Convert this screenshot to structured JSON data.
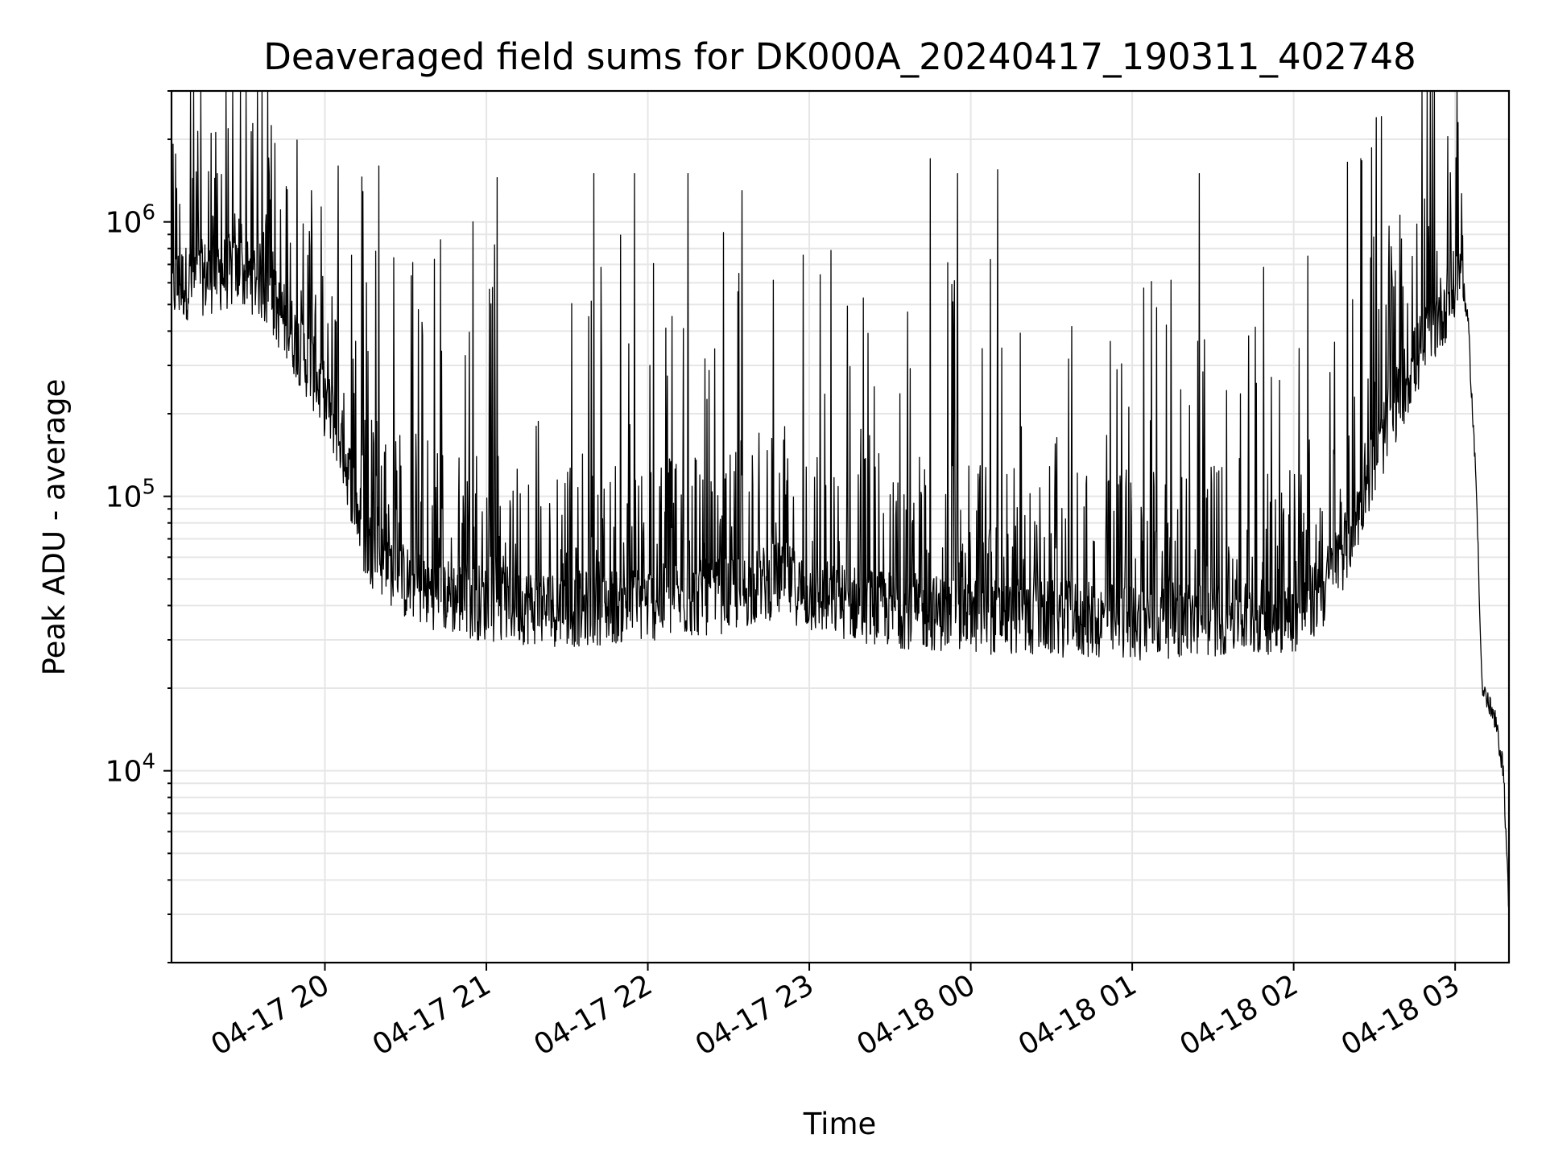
{
  "chart_data": {
    "type": "line",
    "title": "Deaveraged field sums for DK000A_20240417_190311_402748",
    "xlabel": "Time",
    "ylabel": "Peak ADU - average",
    "yscale": "log",
    "ylim": [
      2000,
      3000000
    ],
    "xlim": [
      "2024-04-17 19:03",
      "2024-04-18 03:20"
    ],
    "x_ticks": [
      {
        "t": "2024-04-17 20:00",
        "label": "04-17 20"
      },
      {
        "t": "2024-04-17 21:00",
        "label": "04-17 21"
      },
      {
        "t": "2024-04-17 22:00",
        "label": "04-17 22"
      },
      {
        "t": "2024-04-17 23:00",
        "label": "04-17 23"
      },
      {
        "t": "2024-04-18 00:00",
        "label": "04-18 00"
      },
      {
        "t": "2024-04-18 01:00",
        "label": "04-18 01"
      },
      {
        "t": "2024-04-18 02:00",
        "label": "04-18 02"
      },
      {
        "t": "2024-04-18 03:00",
        "label": "04-18 03"
      }
    ],
    "y_ticks": [
      {
        "value": 10000,
        "base": "10",
        "exp": "4"
      },
      {
        "value": 100000,
        "base": "10",
        "exp": "5"
      },
      {
        "value": 1000000,
        "base": "10",
        "exp": "6"
      }
    ],
    "grid": true,
    "series": [
      {
        "color": "#000000",
        "baseline": {
          "x": [
            "2024-04-17 19:03",
            "2024-04-17 19:15",
            "2024-04-17 19:25",
            "2024-04-17 19:35",
            "2024-04-17 19:45",
            "2024-04-17 19:55",
            "2024-04-17 20:05",
            "2024-04-17 20:15",
            "2024-04-17 20:30",
            "2024-04-17 20:45",
            "2024-04-17 21:00",
            "2024-04-17 21:30",
            "2024-04-17 22:00",
            "2024-04-17 22:30",
            "2024-04-17 22:50",
            "2024-04-17 23:00",
            "2024-04-17 23:30",
            "2024-04-18 00:00",
            "2024-04-18 00:30",
            "2024-04-18 01:00",
            "2024-04-18 01:30",
            "2024-04-18 02:00",
            "2024-04-18 02:10",
            "2024-04-18 02:20",
            "2024-04-18 02:30",
            "2024-04-18 02:40",
            "2024-04-18 02:50",
            "2024-04-18 03:00",
            "2024-04-18 03:02",
            "2024-04-18 03:05",
            "2024-04-18 03:08",
            "2024-04-18 03:10",
            "2024-04-18 03:12",
            "2024-04-18 03:15",
            "2024-04-18 03:18",
            "2024-04-18 03:20"
          ],
          "y": [
            600000,
            650000,
            680000,
            650000,
            450000,
            300000,
            180000,
            70000,
            50000,
            45000,
            42000,
            40000,
            42000,
            45000,
            52000,
            45000,
            40000,
            38000,
            37000,
            36000,
            37000,
            38000,
            45000,
            70000,
            140000,
            250000,
            400000,
            600000,
            700000,
            400000,
            100000,
            20000,
            18000,
            15000,
            10000,
            3000
          ]
        },
        "spikes": [
          {
            "x": "2024-04-17 19:20",
            "y": 1500000
          },
          {
            "x": "2024-04-17 19:55",
            "y": 1300000
          },
          {
            "x": "2024-04-17 20:05",
            "y": 1600000
          },
          {
            "x": "2024-04-17 20:20",
            "y": 1600000
          },
          {
            "x": "2024-04-17 20:55",
            "y": 1000000
          },
          {
            "x": "2024-04-17 21:04",
            "y": 1450000
          },
          {
            "x": "2024-04-17 21:40",
            "y": 1500000
          },
          {
            "x": "2024-04-17 21:55",
            "y": 1500000
          },
          {
            "x": "2024-04-17 22:15",
            "y": 1500000
          },
          {
            "x": "2024-04-17 22:35",
            "y": 1300000
          },
          {
            "x": "2024-04-17 23:45",
            "y": 1700000
          },
          {
            "x": "2024-04-17 23:55",
            "y": 1500000
          },
          {
            "x": "2024-04-18 00:10",
            "y": 1550000
          },
          {
            "x": "2024-04-18 01:25",
            "y": 1500000
          },
          {
            "x": "2024-04-18 02:20",
            "y": 1650000
          },
          {
            "x": "2024-04-18 02:25",
            "y": 1700000
          },
          {
            "x": "2024-04-18 03:01",
            "y": 2300000
          }
        ]
      }
    ]
  }
}
